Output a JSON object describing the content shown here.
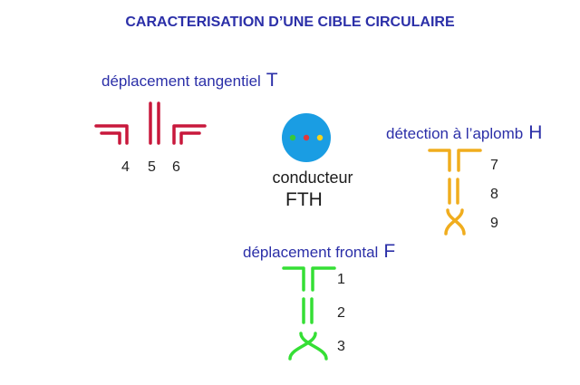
{
  "title": "CARACTERISATION D’UNE CIBLE CIRCULAIRE",
  "colors": {
    "title": "#2b2fa8",
    "label": "#2b2fa8",
    "tangential": "#c8183c",
    "vertical": "#f0ad1e",
    "frontal": "#35df35",
    "conductor_circle": "#1a9de3",
    "dot_green": "#37c83a",
    "dot_red": "#e0383c",
    "dot_yellow": "#f4d21c"
  },
  "tangential": {
    "label": "déplacement tangentiel",
    "letter": "T",
    "numbers": [
      "4",
      "5",
      "6"
    ]
  },
  "vertical": {
    "label": "détection à l’aplomb",
    "letter": "H",
    "numbers": [
      "7",
      "8",
      "9"
    ]
  },
  "frontal": {
    "label": "déplacement frontal",
    "letter": "F",
    "numbers": [
      "1",
      "2",
      "3"
    ]
  },
  "conductor": {
    "label": "conducteur",
    "sub": "FTH",
    "icon": "conductor-cross-section-icon"
  }
}
